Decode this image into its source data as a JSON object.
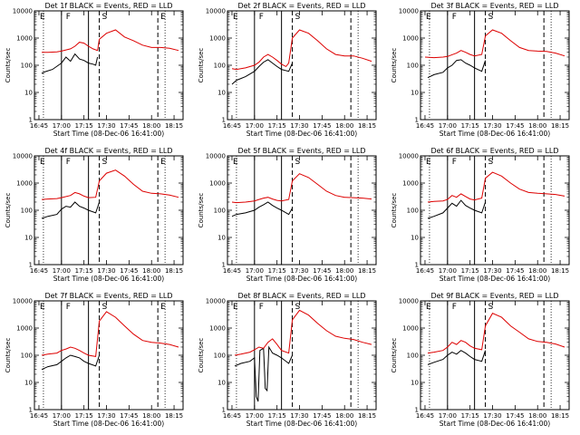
{
  "chart_data": [
    {
      "type": "line",
      "title": "Det 1f BLACK = Events, RED = LLD",
      "xlabel": "Start Time (08-Dec-06 16:41:00)",
      "ylabel": "Counts/sec",
      "yscale": "log",
      "ylim": [
        1,
        10000
      ],
      "xlim": [
        16.7,
        18.35
      ],
      "xtick_labels": [
        "16:45",
        "17:00",
        "17:15",
        "17:30",
        "17:45",
        "18:00",
        "18:15"
      ],
      "ytick_labels": [
        "1",
        "10",
        "100",
        "1000",
        "10000"
      ],
      "interval_letters": [
        "E",
        "F",
        "S",
        "E"
      ],
      "series": [
        {
          "color": "#000000",
          "x": [
            16.78,
            16.82,
            16.9,
            17.0,
            17.05,
            17.1,
            17.15,
            17.2,
            17.25,
            17.3,
            17.35,
            17.38,
            17.4
          ],
          "y": [
            50,
            58,
            70,
            120,
            200,
            140,
            260,
            170,
            150,
            120,
            110,
            100,
            200
          ]
        },
        {
          "color": "#dd0000",
          "x": [
            16.78,
            16.85,
            16.95,
            17.0,
            17.1,
            17.15,
            17.2,
            17.25,
            17.3,
            17.35,
            17.4,
            17.42,
            17.5,
            17.6,
            17.7,
            17.8,
            17.9,
            18.0,
            18.1,
            18.2,
            18.3
          ],
          "y": [
            300,
            300,
            310,
            330,
            400,
            500,
            700,
            650,
            500,
            400,
            350,
            900,
            1500,
            2000,
            1100,
            800,
            550,
            450,
            450,
            420,
            350
          ]
        }
      ]
    },
    {
      "type": "line",
      "title": "Det 2f BLACK = Events, RED = LLD",
      "xlabel": "Start Time (08-Dec-06 16:41:00)",
      "ylabel": "Counts/sec",
      "yscale": "log",
      "ylim": [
        1,
        10000
      ],
      "xlim": [
        16.7,
        18.35
      ],
      "xtick_labels": [
        "16:45",
        "17:00",
        "17:15",
        "17:30",
        "17:45",
        "18:00",
        "18:15"
      ],
      "ytick_labels": [
        "1",
        "10",
        "100",
        "1000",
        "10000"
      ],
      "interval_letters": [
        "F",
        "S",
        "E"
      ],
      "series": [
        {
          "color": "#000000",
          "x": [
            16.75,
            16.8,
            16.9,
            17.0,
            17.05,
            17.1,
            17.15,
            17.2,
            17.25,
            17.3,
            17.38,
            17.42
          ],
          "y": [
            20,
            28,
            38,
            60,
            90,
            130,
            160,
            120,
            90,
            70,
            60,
            120
          ]
        },
        {
          "color": "#dd0000",
          "x": [
            16.75,
            16.8,
            16.9,
            17.0,
            17.05,
            17.1,
            17.15,
            17.2,
            17.25,
            17.3,
            17.35,
            17.38,
            17.42,
            17.5,
            17.6,
            17.7,
            17.8,
            17.9,
            18.0,
            18.1,
            18.2,
            18.3
          ],
          "y": [
            75,
            70,
            80,
            100,
            130,
            200,
            250,
            200,
            150,
            110,
            90,
            120,
            1000,
            2000,
            1500,
            800,
            400,
            250,
            220,
            220,
            180,
            140
          ]
        }
      ]
    },
    {
      "type": "line",
      "title": "Det 3f BLACK = Events, RED = LLD",
      "xlabel": "Start Time (08-Dec-06 16:41:00)",
      "ylabel": "Counts/sec",
      "yscale": "log",
      "ylim": [
        1,
        10000
      ],
      "xlim": [
        16.7,
        18.35
      ],
      "xtick_labels": [
        "16:45",
        "17:00",
        "17:15",
        "17:30",
        "17:45",
        "18:00",
        "18:15"
      ],
      "ytick_labels": [
        "1",
        "10",
        "100",
        "1000",
        "10000"
      ],
      "interval_letters": [
        "F",
        "S",
        "E"
      ],
      "series": [
        {
          "color": "#000000",
          "x": [
            16.78,
            16.85,
            16.95,
            17.0,
            17.05,
            17.1,
            17.15,
            17.2,
            17.25,
            17.3,
            17.38,
            17.42
          ],
          "y": [
            35,
            45,
            55,
            80,
            100,
            150,
            160,
            120,
            100,
            80,
            60,
            150
          ]
        },
        {
          "color": "#dd0000",
          "x": [
            16.75,
            16.85,
            16.95,
            17.0,
            17.1,
            17.15,
            17.2,
            17.25,
            17.3,
            17.38,
            17.42,
            17.5,
            17.6,
            17.7,
            17.8,
            17.9,
            18.0,
            18.1,
            18.2,
            18.3
          ],
          "y": [
            200,
            190,
            200,
            210,
            280,
            350,
            300,
            250,
            220,
            250,
            1200,
            2000,
            1500,
            800,
            450,
            350,
            330,
            320,
            280,
            220
          ]
        }
      ]
    },
    {
      "type": "line",
      "title": "Det 4f BLACK = Events, RED = LLD",
      "xlabel": "Start Time (08-Dec-06 16:41:00)",
      "ylabel": "Counts/sec",
      "yscale": "log",
      "ylim": [
        1,
        10000
      ],
      "xlim": [
        16.7,
        18.35
      ],
      "xtick_labels": [
        "16:45",
        "17:00",
        "17:15",
        "17:30",
        "17:45",
        "18:00",
        "18:15"
      ],
      "ytick_labels": [
        "1",
        "10",
        "100",
        "1000",
        "10000"
      ],
      "interval_letters": [
        "E",
        "F",
        "S",
        "E"
      ],
      "series": [
        {
          "color": "#000000",
          "x": [
            16.78,
            16.85,
            16.95,
            17.0,
            17.05,
            17.1,
            17.15,
            17.2,
            17.25,
            17.3,
            17.38,
            17.42
          ],
          "y": [
            50,
            60,
            70,
            110,
            140,
            130,
            200,
            140,
            120,
            100,
            80,
            200
          ]
        },
        {
          "color": "#dd0000",
          "x": [
            16.78,
            16.85,
            16.95,
            17.0,
            17.1,
            17.15,
            17.2,
            17.25,
            17.3,
            17.38,
            17.42,
            17.5,
            17.6,
            17.7,
            17.8,
            17.9,
            18.0,
            18.1,
            18.2,
            18.3
          ],
          "y": [
            250,
            260,
            270,
            290,
            350,
            450,
            400,
            330,
            290,
            300,
            1200,
            2300,
            3000,
            1800,
            900,
            500,
            420,
            400,
            360,
            300
          ]
        }
      ]
    },
    {
      "type": "line",
      "title": "Det 5f BLACK = Events, RED = LLD",
      "xlabel": "Start Time (08-Dec-06 16:41:00)",
      "ylabel": "Counts/sec",
      "yscale": "log",
      "ylim": [
        1,
        10000
      ],
      "xlim": [
        16.7,
        18.35
      ],
      "xtick_labels": [
        "16:45",
        "17:00",
        "17:15",
        "17:30",
        "17:45",
        "18:00",
        "18:15"
      ],
      "ytick_labels": [
        "1",
        "10",
        "100",
        "1000",
        "10000"
      ],
      "interval_letters": [
        "S",
        "E"
      ],
      "series": [
        {
          "color": "#000000",
          "x": [
            16.75,
            16.8,
            16.9,
            17.0,
            17.05,
            17.1,
            17.15,
            17.2,
            17.25,
            17.3,
            17.38,
            17.42
          ],
          "y": [
            60,
            70,
            80,
            100,
            130,
            160,
            200,
            150,
            120,
            100,
            70,
            120
          ]
        },
        {
          "color": "#dd0000",
          "x": [
            16.75,
            16.8,
            16.9,
            17.0,
            17.05,
            17.1,
            17.15,
            17.2,
            17.25,
            17.3,
            17.38,
            17.42,
            17.5,
            17.6,
            17.7,
            17.8,
            17.9,
            18.0,
            18.1,
            18.2,
            18.3
          ],
          "y": [
            200,
            190,
            200,
            220,
            250,
            280,
            300,
            260,
            230,
            220,
            250,
            1200,
            2200,
            1600,
            900,
            500,
            350,
            300,
            290,
            280,
            260
          ]
        }
      ]
    },
    {
      "type": "line",
      "title": "Det 6f BLACK = Events, RED = LLD",
      "xlabel": "Start Time (08-Dec-06 16:41:00)",
      "ylabel": "Counts/sec",
      "yscale": "log",
      "ylim": [
        1,
        10000
      ],
      "xlim": [
        16.7,
        18.35
      ],
      "xtick_labels": [
        "16:45",
        "17:00",
        "17:15",
        "17:30",
        "17:45",
        "18:00",
        "18:15"
      ],
      "ytick_labels": [
        "1",
        "10",
        "100",
        "1000",
        "10000"
      ],
      "interval_letters": [
        "F",
        "S",
        "E"
      ],
      "series": [
        {
          "color": "#000000",
          "x": [
            16.78,
            16.85,
            16.95,
            17.0,
            17.05,
            17.1,
            17.15,
            17.2,
            17.25,
            17.3,
            17.38,
            17.42
          ],
          "y": [
            50,
            60,
            80,
            120,
            180,
            140,
            230,
            150,
            120,
            100,
            80,
            200
          ]
        },
        {
          "color": "#dd0000",
          "x": [
            16.78,
            16.85,
            16.95,
            17.0,
            17.05,
            17.1,
            17.15,
            17.2,
            17.25,
            17.3,
            17.38,
            17.42,
            17.5,
            17.6,
            17.7,
            17.8,
            17.9,
            18.0,
            18.1,
            18.2,
            18.3
          ],
          "y": [
            200,
            210,
            220,
            250,
            350,
            300,
            400,
            320,
            260,
            240,
            280,
            1500,
            2500,
            1800,
            1000,
            600,
            450,
            420,
            400,
            380,
            330
          ]
        }
      ]
    },
    {
      "type": "line",
      "title": "Det 7f BLACK = Events, RED = LLD",
      "xlabel": "Start Time (08-Dec-06 16:41:00)",
      "ylabel": "Counts/sec",
      "yscale": "log",
      "ylim": [
        1,
        10000
      ],
      "xlim": [
        16.7,
        18.35
      ],
      "xtick_labels": [
        "16:45",
        "17:00",
        "17:15",
        "17:30",
        "17:45",
        "18:00",
        "18:15"
      ],
      "ytick_labels": [
        "1",
        "10",
        "100",
        "1000",
        "10000"
      ],
      "interval_letters": [
        "E",
        "F",
        "S",
        "E"
      ],
      "series": [
        {
          "color": "#000000",
          "x": [
            16.78,
            16.85,
            16.95,
            17.0,
            17.05,
            17.1,
            17.15,
            17.2,
            17.25,
            17.3,
            17.38,
            17.42
          ],
          "y": [
            30,
            38,
            45,
            60,
            80,
            100,
            90,
            80,
            60,
            50,
            40,
            100
          ]
        },
        {
          "color": "#dd0000",
          "x": [
            16.78,
            16.85,
            16.95,
            17.0,
            17.05,
            17.1,
            17.15,
            17.2,
            17.25,
            17.3,
            17.38,
            17.42,
            17.5,
            17.6,
            17.7,
            17.8,
            17.9,
            18.0,
            18.1,
            18.2,
            18.3
          ],
          "y": [
            100,
            110,
            120,
            150,
            170,
            200,
            180,
            150,
            120,
            100,
            90,
            1800,
            4000,
            2500,
            1200,
            600,
            350,
            300,
            280,
            250,
            200
          ]
        }
      ]
    },
    {
      "type": "line",
      "title": "Det 8f BLACK = Events, RED = LLD",
      "xlabel": "Start Time (08-Dec-06 16:41:00)",
      "ylabel": "Counts/sec",
      "yscale": "log",
      "ylim": [
        1,
        10000
      ],
      "xlim": [
        16.7,
        18.35
      ],
      "xtick_labels": [
        "16:45",
        "17:00",
        "17:15",
        "17:30",
        "17:45",
        "18:00",
        "18:15"
      ],
      "ytick_labels": [
        "1",
        "10",
        "100",
        "1000",
        "10000"
      ],
      "interval_letters": [
        "F",
        "S",
        "E"
      ],
      "series": [
        {
          "color": "#000000",
          "x": [
            16.78,
            16.85,
            16.95,
            17.0,
            17.02,
            17.04,
            17.06,
            17.1,
            17.12,
            17.14,
            17.16,
            17.2,
            17.25,
            17.3,
            17.38,
            17.42
          ],
          "y": [
            40,
            50,
            60,
            80,
            3,
            2,
            150,
            180,
            6,
            5,
            200,
            120,
            100,
            80,
            50,
            100
          ]
        },
        {
          "color": "#dd0000",
          "x": [
            16.78,
            16.85,
            16.95,
            17.0,
            17.05,
            17.1,
            17.15,
            17.2,
            17.25,
            17.3,
            17.38,
            17.42,
            17.5,
            17.6,
            17.7,
            17.8,
            17.9,
            18.0,
            18.1,
            18.2,
            18.3
          ],
          "y": [
            100,
            110,
            130,
            160,
            200,
            180,
            300,
            400,
            250,
            150,
            120,
            2000,
            4500,
            3000,
            1500,
            800,
            500,
            420,
            380,
            300,
            250
          ]
        }
      ]
    },
    {
      "type": "line",
      "title": "Det 9f BLACK = Events, RED = LLD",
      "xlabel": "Start Time (08-Dec-06 16:41:00)",
      "ylabel": "Counts/sec",
      "yscale": "log",
      "ylim": [
        1,
        10000
      ],
      "xlim": [
        16.7,
        18.35
      ],
      "xtick_labels": [
        "16:45",
        "17:00",
        "17:15",
        "17:30",
        "17:45",
        "18:00",
        "18:15"
      ],
      "ytick_labels": [
        "1",
        "10",
        "100",
        "1000",
        "10000"
      ],
      "interval_letters": [
        "F",
        "S",
        "E"
      ],
      "series": [
        {
          "color": "#000000",
          "x": [
            16.78,
            16.85,
            16.95,
            17.0,
            17.05,
            17.1,
            17.15,
            17.2,
            17.25,
            17.3,
            17.38,
            17.42
          ],
          "y": [
            45,
            55,
            70,
            100,
            130,
            110,
            150,
            120,
            90,
            70,
            60,
            150
          ]
        },
        {
          "color": "#dd0000",
          "x": [
            16.78,
            16.85,
            16.95,
            17.0,
            17.05,
            17.1,
            17.15,
            17.2,
            17.25,
            17.3,
            17.38,
            17.42,
            17.5,
            17.6,
            17.7,
            17.8,
            17.9,
            18.0,
            18.1,
            18.2,
            18.3
          ],
          "y": [
            120,
            130,
            150,
            200,
            300,
            250,
            350,
            300,
            220,
            180,
            160,
            1200,
            3500,
            2500,
            1200,
            700,
            400,
            320,
            300,
            260,
            200
          ]
        }
      ]
    }
  ]
}
